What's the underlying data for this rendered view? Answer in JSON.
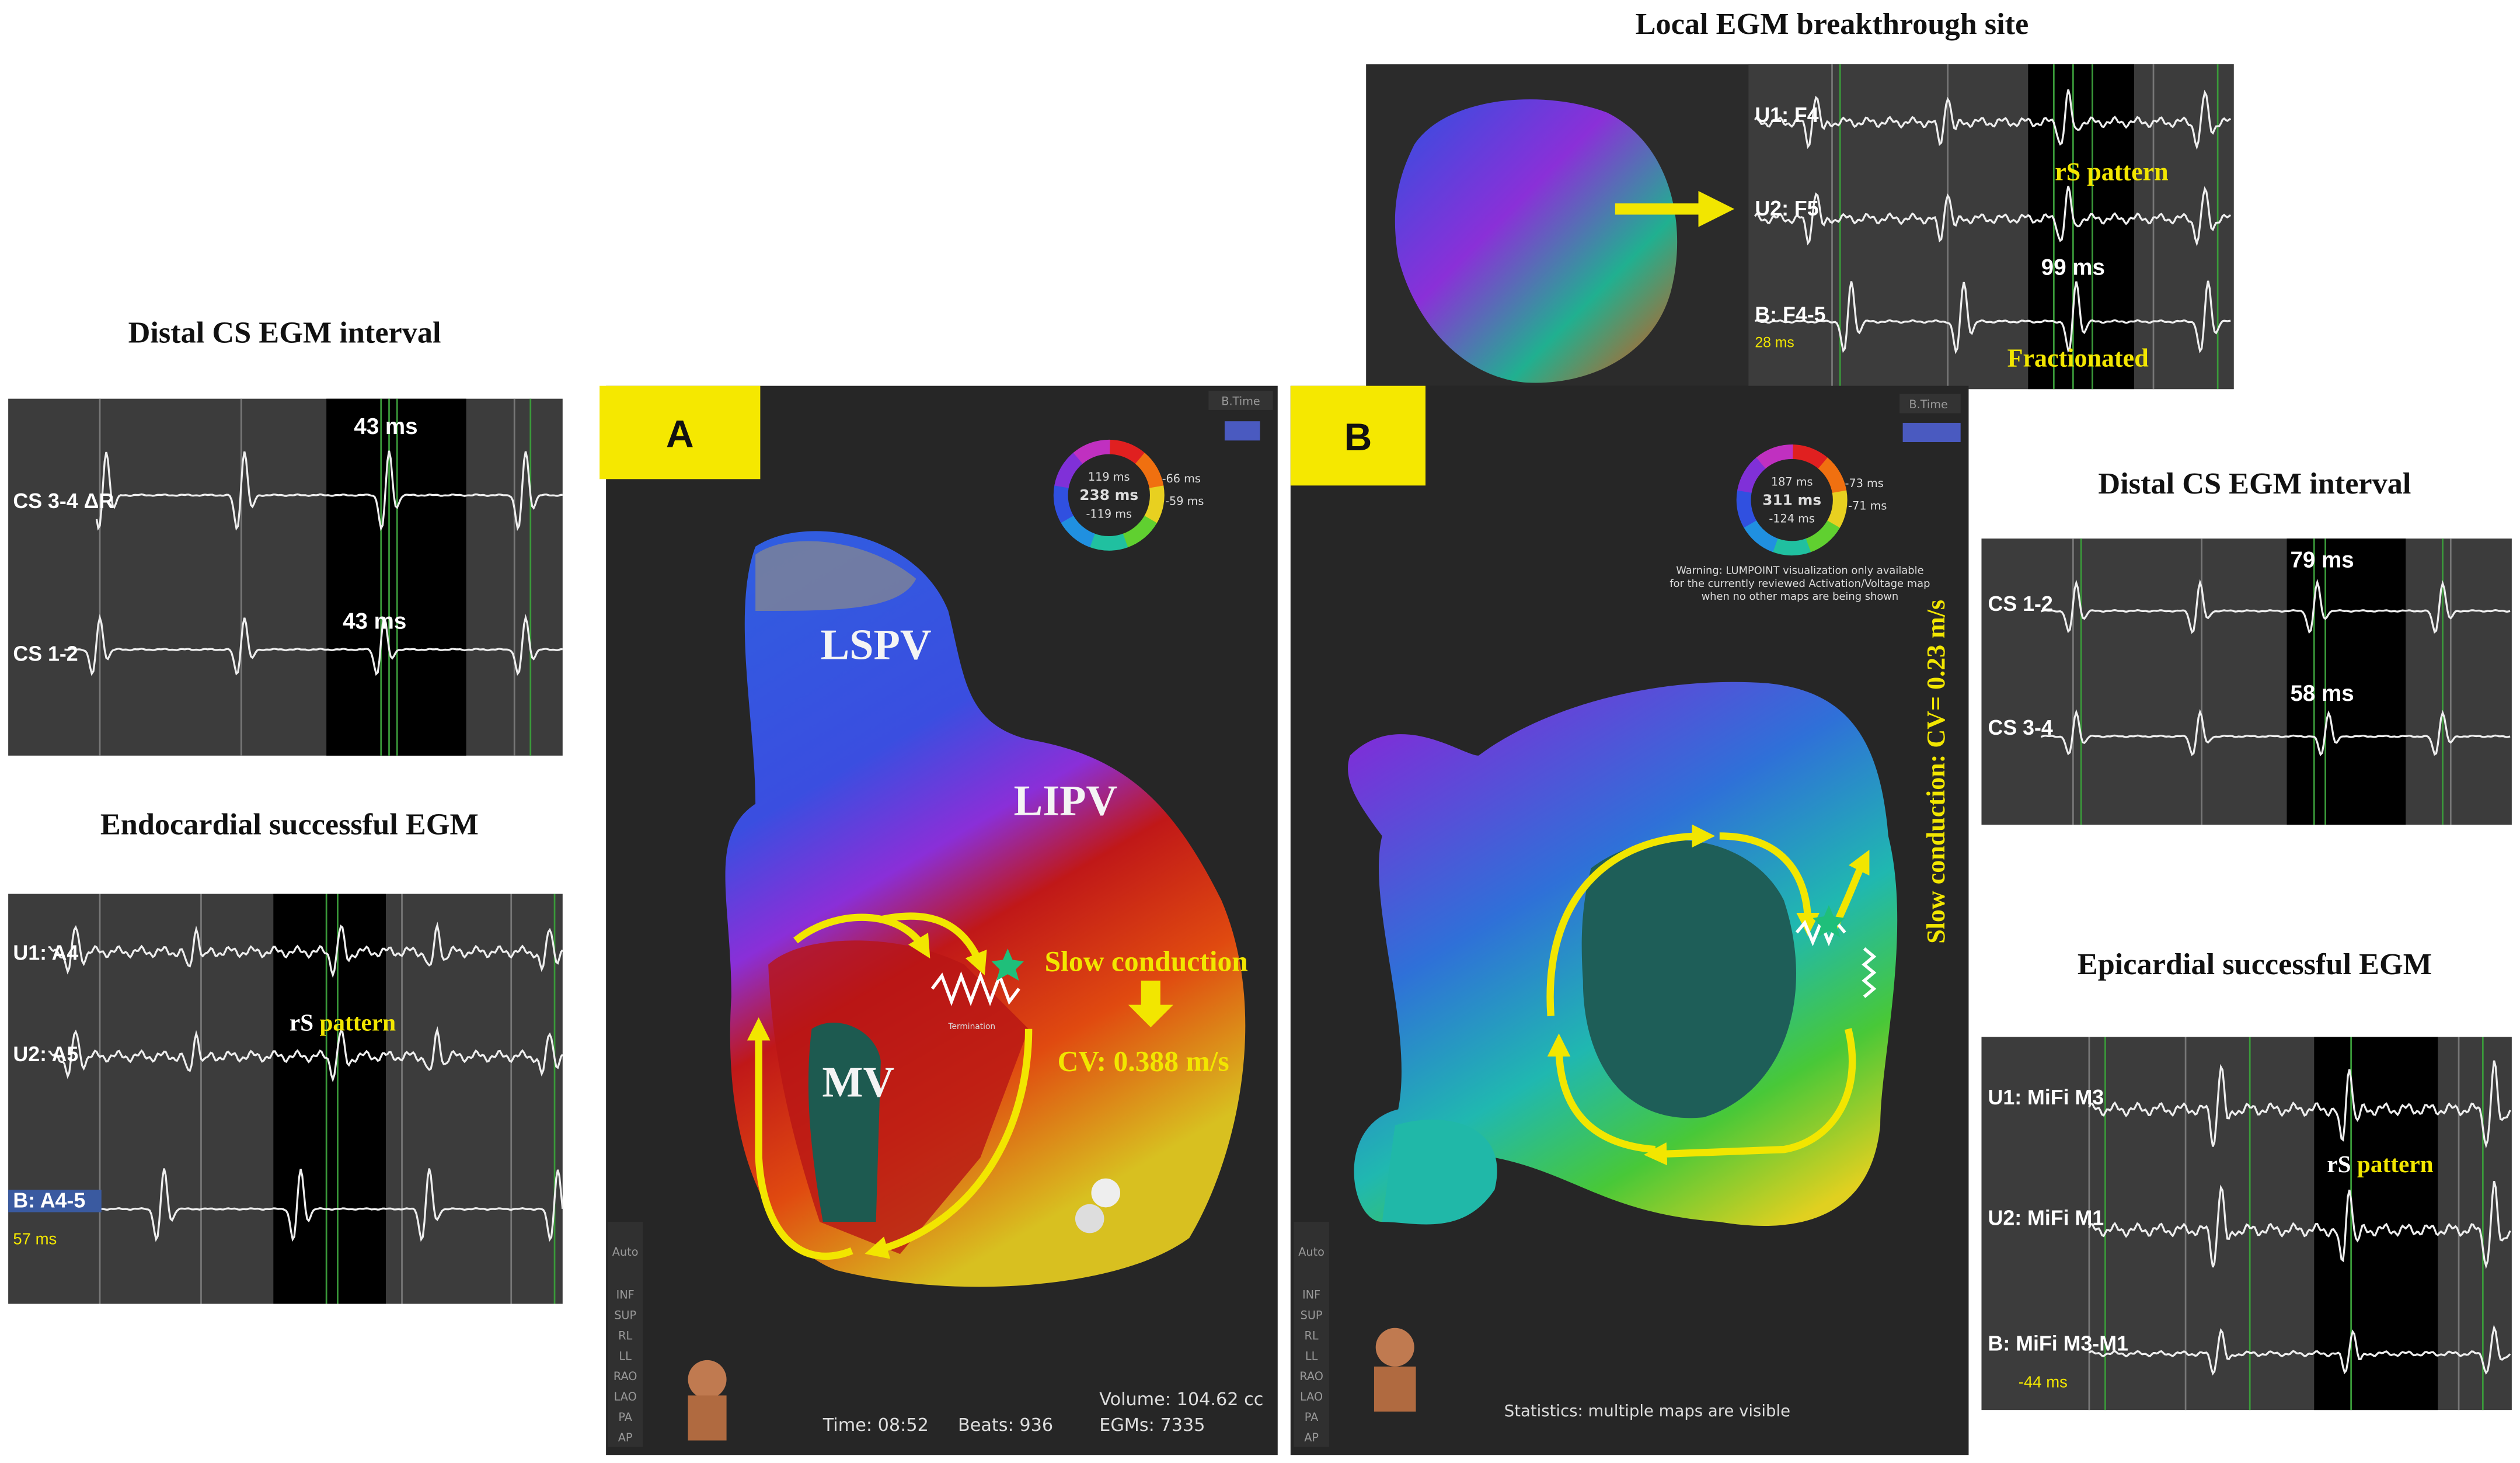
{
  "panels": {
    "cs_left": {
      "title": "Distal CS EGM interval",
      "channels": [
        "CS 3-4 ΔR",
        "CS 1-2"
      ],
      "intervals": [
        "43 ms",
        "43 ms"
      ]
    },
    "endo": {
      "title": "Endocardial successful EGM",
      "channels": [
        "U1: A4",
        "U2: A5",
        "B: A4-5"
      ],
      "timing": "57 ms",
      "pattern": [
        "rS",
        "pattern"
      ]
    },
    "map_a": {
      "label": "A",
      "legend": "B.Time",
      "ring": [
        "119 ms",
        "238 ms",
        "-119 ms",
        "-66 ms",
        "-59 ms"
      ],
      "anatomy": [
        "LSPV",
        "LIPV",
        "MV"
      ],
      "annotation": "Slow conduction",
      "cv": "CV: 0.388 m/s",
      "termination": "Termination",
      "views": [
        "Auto",
        "INF",
        "SUP",
        "RL",
        "LL",
        "RAO",
        "LAO",
        "PA",
        "AP"
      ],
      "stats": [
        "Time: 08:52",
        "Beats: 936",
        "Volume: 104.62 cc",
        "EGMs: 7335"
      ]
    },
    "map_b": {
      "label": "B",
      "legend": "B.Time",
      "ring": [
        "187 ms",
        "311 ms",
        "-124 ms",
        "-73 ms",
        "-71 ms"
      ],
      "warning": [
        "Warning: LUMPOINT visualization only available",
        "for the currently reviewed Activation/Voltage map",
        "when no other maps are being shown"
      ],
      "annotation": "Slow conduction: CV= 0.23 m/s",
      "views": [
        "Auto",
        "INF",
        "SUP",
        "RL",
        "LL",
        "RAO",
        "LAO",
        "PA",
        "AP"
      ],
      "stats": "Statistics: multiple maps are visible"
    },
    "breakthrough": {
      "title": "Local EGM breakthrough site",
      "channels": [
        "U1: F4",
        "U2: F5",
        "B: F4-5"
      ],
      "timing": "28 ms",
      "pattern": "rS pattern",
      "interval": "99 ms",
      "note": "Fractionated"
    },
    "cs_right": {
      "title": "Distal CS EGM interval",
      "channels": [
        "CS 1-2",
        "CS 3-4"
      ],
      "intervals": [
        "79 ms",
        "58 ms"
      ]
    },
    "epi": {
      "title": "Epicardial successful EGM",
      "channels": [
        "U1: MiFi M3",
        "U2: MiFi M1",
        "B: MiFi M3-M1"
      ],
      "timing": "-44 ms",
      "pattern": [
        "rS",
        "pattern"
      ]
    }
  }
}
